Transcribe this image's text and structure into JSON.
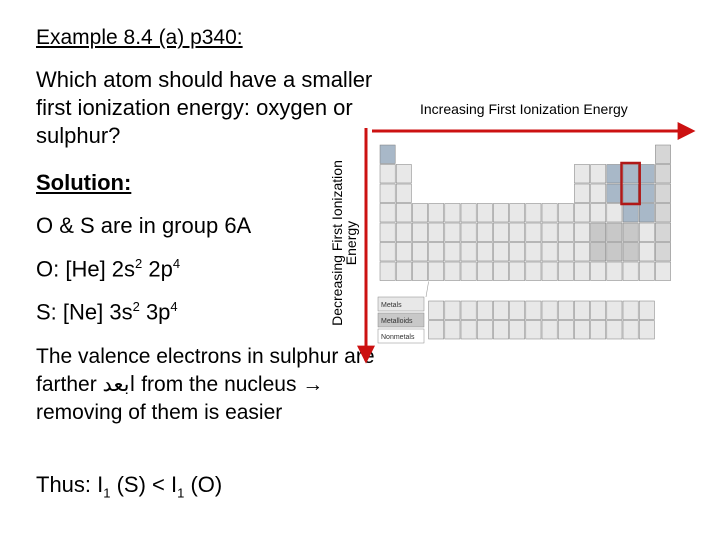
{
  "title": "Example 8.4 (a) p340:",
  "question": "Which atom should have a smaller first ionization energy: oxygen or sulphur?",
  "solution_heading": "Solution:",
  "group_line": "O & S are in group 6A",
  "oxygen_config": {
    "label": "O: [He] 2s",
    "sup1": "2",
    "mid": " 2p",
    "sup2": "4"
  },
  "sulfur_config": {
    "label": "S: [Ne] 3s",
    "sup1": "2",
    "mid": " 3p",
    "sup2": "4"
  },
  "valence_text": {
    "part1": "The valence electrons in sulphur are farther ",
    "arabic": "ابعد",
    "part2": " from the nucleus → removing of them is easier"
  },
  "conclusion": {
    "pre": "Thus: I",
    "sub1": "1",
    "mid": " (S) < I",
    "sub2": "1",
    "post": " (O)"
  },
  "arrows": {
    "horizontal_label": "Increasing First Ionization Energy",
    "vertical_label": "Decreasing First Ionization Energy",
    "color": "#cc1111"
  },
  "periodic_table": {
    "legend": [
      "Metals",
      "Metalloids",
      "Nonmetals"
    ],
    "highlight_color": "#b01818",
    "highlighted_elements": [
      "O",
      "S"
    ]
  }
}
